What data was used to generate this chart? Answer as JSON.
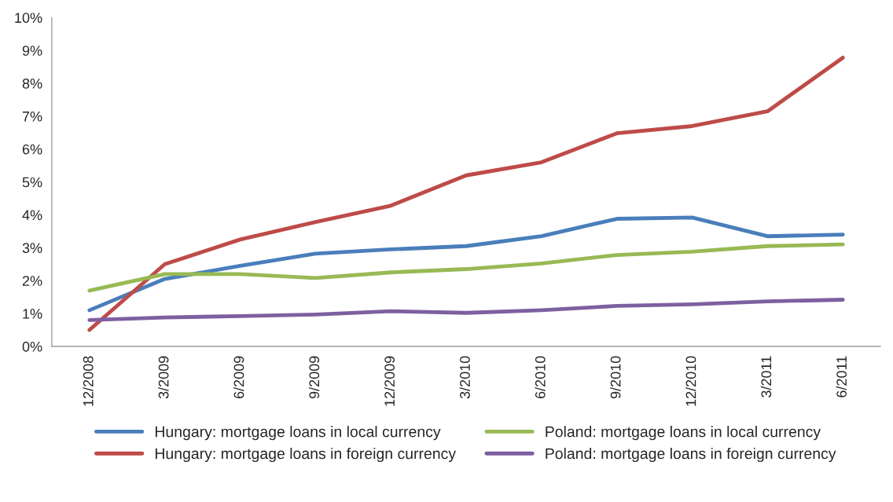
{
  "chart_data": {
    "type": "line",
    "categories": [
      "12/2008",
      "3/2009",
      "6/2009",
      "9/2009",
      "12/2009",
      "3/2010",
      "6/2010",
      "9/2010",
      "12/2010",
      "3/2011",
      "6/2011"
    ],
    "series": [
      {
        "name": "Hungary: mortgage loans in local currency",
        "color": "#4a7ebb",
        "values": [
          1.1,
          2.05,
          2.45,
          2.82,
          2.95,
          3.05,
          3.35,
          3.88,
          3.92,
          3.35,
          3.4
        ]
      },
      {
        "name": "Hungary: mortgage loans in foreign currency",
        "color": "#be4b48",
        "values": [
          0.5,
          2.5,
          3.25,
          3.78,
          4.28,
          5.2,
          5.6,
          6.48,
          6.7,
          7.15,
          8.78
        ]
      },
      {
        "name": "Poland: mortgage loans in local currency",
        "color": "#98b954",
        "values": [
          1.7,
          2.2,
          2.2,
          2.08,
          2.25,
          2.35,
          2.52,
          2.78,
          2.88,
          3.05,
          3.1
        ]
      },
      {
        "name": "Poland: mortgage loans in foreign currency",
        "color": "#7d60a0",
        "values": [
          0.8,
          0.88,
          0.92,
          0.97,
          1.07,
          1.02,
          1.1,
          1.23,
          1.28,
          1.37,
          1.42
        ]
      }
    ],
    "ylim": [
      0,
      10
    ],
    "yticks": [
      {
        "value": 0,
        "label": "0%"
      },
      {
        "value": 1,
        "label": "1%"
      },
      {
        "value": 2,
        "label": "2%"
      },
      {
        "value": 3,
        "label": "3%"
      },
      {
        "value": 4,
        "label": "4%"
      },
      {
        "value": 5,
        "label": "5%"
      },
      {
        "value": 6,
        "label": "6%"
      },
      {
        "value": 7,
        "label": "7%"
      },
      {
        "value": 8,
        "label": "8%"
      },
      {
        "value": 9,
        "label": "9%"
      },
      {
        "value": 10,
        "label": "10%"
      }
    ],
    "grid": false,
    "legend": "bottom",
    "marker": "none",
    "line_style": "solid"
  }
}
